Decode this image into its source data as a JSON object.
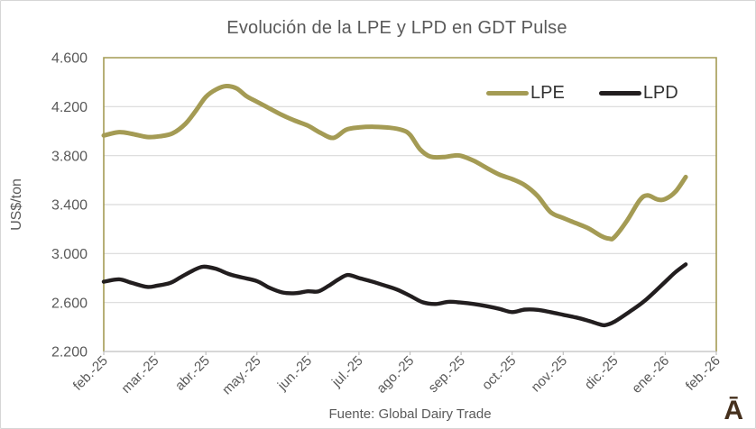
{
  "window": {
    "background": "#ffffff",
    "border_color": "#d6d6d6"
  },
  "source_note": "Fuente: Global Dairy Trade",
  "logo_glyph": "Ā",
  "colors": {
    "title_text": "#595959",
    "axis_text": "#595959",
    "gridline": "#d9d9d9",
    "axis_line": "#bfbfbf",
    "plot_border": "#a49b54",
    "lpe_line": "#a49b54",
    "lpd_line": "#221e1f",
    "logo_brown": "#45301d"
  },
  "chart_data": {
    "type": "line",
    "title": "Evolución de la LPE y LPD en GDT Pulse",
    "xlabel": "",
    "ylabel": "US$/ton",
    "ylim": [
      2200,
      4600
    ],
    "ytick_step": 400,
    "ytick_labels": [
      "2.200",
      "2.600",
      "3.000",
      "3.400",
      "3.800",
      "4.200",
      "4.600"
    ],
    "categories": [
      "feb.-25",
      "mar.-25",
      "abr.-25",
      "may.-25",
      "jun.-25",
      "jul.-25",
      "ago.-25",
      "sep.-25",
      "oct.-25",
      "nov.-25",
      "dic.-25",
      "ene.-26",
      "feb.-26"
    ],
    "x_unit": "months after feb.-25 (category index)",
    "grid": "horizontal",
    "legend_position": "top-right-inside",
    "series": [
      {
        "name": "LPE",
        "color": "#a49b54",
        "stroke_width": 5,
        "points": [
          [
            0,
            3965
          ],
          [
            0.3,
            3992
          ],
          [
            0.55,
            3978
          ],
          [
            0.85,
            3952
          ],
          [
            1.1,
            3958
          ],
          [
            1.35,
            3982
          ],
          [
            1.6,
            4060
          ],
          [
            1.8,
            4165
          ],
          [
            2,
            4280
          ],
          [
            2.2,
            4340
          ],
          [
            2.4,
            4368
          ],
          [
            2.6,
            4350
          ],
          [
            2.8,
            4285
          ],
          [
            3,
            4240
          ],
          [
            3.25,
            4185
          ],
          [
            3.5,
            4130
          ],
          [
            3.75,
            4085
          ],
          [
            4,
            4045
          ],
          [
            4.25,
            3985
          ],
          [
            4.5,
            3945
          ],
          [
            4.75,
            4012
          ],
          [
            5,
            4030
          ],
          [
            5.3,
            4035
          ],
          [
            5.6,
            4028
          ],
          [
            5.85,
            4008
          ],
          [
            6,
            3970
          ],
          [
            6.2,
            3850
          ],
          [
            6.4,
            3792
          ],
          [
            6.65,
            3788
          ],
          [
            6.85,
            3800
          ],
          [
            7,
            3798
          ],
          [
            7.25,
            3758
          ],
          [
            7.5,
            3700
          ],
          [
            7.75,
            3645
          ],
          [
            8,
            3608
          ],
          [
            8.25,
            3558
          ],
          [
            8.5,
            3470
          ],
          [
            8.75,
            3340
          ],
          [
            9,
            3290
          ],
          [
            9.25,
            3248
          ],
          [
            9.5,
            3205
          ],
          [
            9.75,
            3142
          ],
          [
            9.9,
            3122
          ],
          [
            10,
            3132
          ],
          [
            10.25,
            3268
          ],
          [
            10.5,
            3435
          ],
          [
            10.65,
            3475
          ],
          [
            10.85,
            3442
          ],
          [
            11,
            3446
          ],
          [
            11.2,
            3505
          ],
          [
            11.4,
            3625
          ]
        ]
      },
      {
        "name": "LPD",
        "color": "#221e1f",
        "stroke_width": 4.4,
        "points": [
          [
            0,
            2770
          ],
          [
            0.3,
            2790
          ],
          [
            0.55,
            2760
          ],
          [
            0.85,
            2728
          ],
          [
            1.05,
            2738
          ],
          [
            1.3,
            2760
          ],
          [
            1.5,
            2805
          ],
          [
            1.75,
            2862
          ],
          [
            1.95,
            2893
          ],
          [
            2.2,
            2875
          ],
          [
            2.45,
            2833
          ],
          [
            2.7,
            2805
          ],
          [
            3,
            2775
          ],
          [
            3.25,
            2720
          ],
          [
            3.5,
            2682
          ],
          [
            3.75,
            2676
          ],
          [
            4,
            2692
          ],
          [
            4.2,
            2690
          ],
          [
            4.4,
            2735
          ],
          [
            4.6,
            2790
          ],
          [
            4.78,
            2825
          ],
          [
            5,
            2800
          ],
          [
            5.25,
            2772
          ],
          [
            5.5,
            2740
          ],
          [
            5.75,
            2705
          ],
          [
            6,
            2655
          ],
          [
            6.25,
            2602
          ],
          [
            6.5,
            2588
          ],
          [
            6.75,
            2606
          ],
          [
            7,
            2600
          ],
          [
            7.25,
            2588
          ],
          [
            7.5,
            2570
          ],
          [
            7.75,
            2548
          ],
          [
            8,
            2522
          ],
          [
            8.25,
            2542
          ],
          [
            8.5,
            2540
          ],
          [
            8.75,
            2522
          ],
          [
            9,
            2500
          ],
          [
            9.25,
            2478
          ],
          [
            9.5,
            2450
          ],
          [
            9.7,
            2424
          ],
          [
            9.82,
            2415
          ],
          [
            10,
            2442
          ],
          [
            10.3,
            2525
          ],
          [
            10.6,
            2615
          ],
          [
            11,
            2770
          ],
          [
            11.2,
            2848
          ],
          [
            11.4,
            2912
          ]
        ]
      }
    ]
  }
}
